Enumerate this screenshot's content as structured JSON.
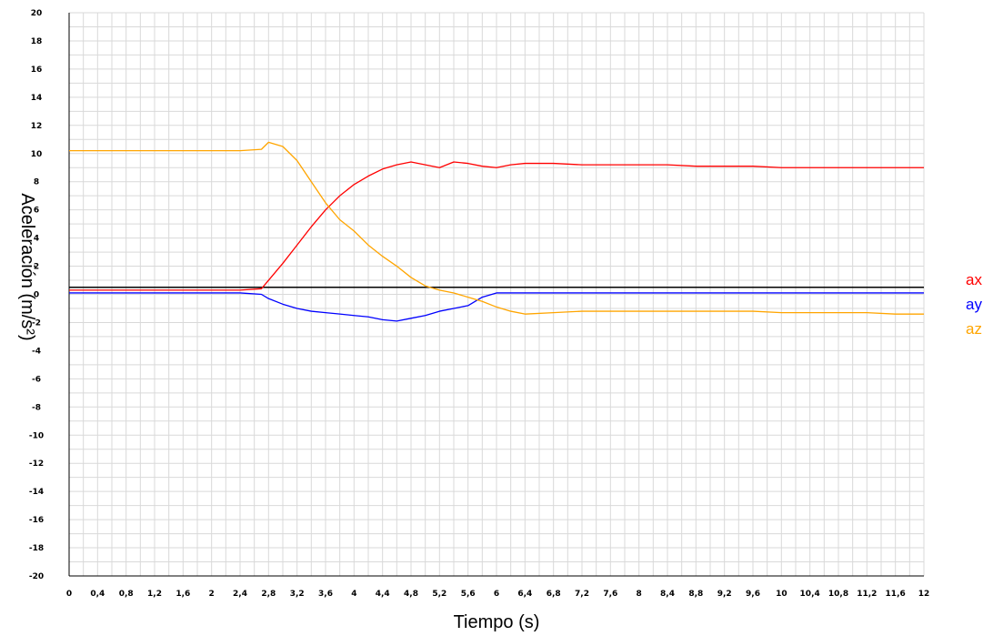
{
  "chart_data": {
    "type": "line",
    "xlabel": "Tiempo (s)",
    "ylabel": "Aceleración (m/s²)",
    "xlim": [
      0,
      12
    ],
    "ylim": [
      -20,
      20
    ],
    "grid": true,
    "legend_position": "right",
    "x_ticks": [
      "0",
      "0,4",
      "0,8",
      "1,2",
      "1,6",
      "2",
      "2,4",
      "2,8",
      "3,2",
      "3,6",
      "4",
      "4,4",
      "4,8",
      "5,2",
      "5,6",
      "6",
      "6,4",
      "6,8",
      "7,2",
      "7,6",
      "8",
      "8,4",
      "8,8",
      "9,2",
      "9,6",
      "10",
      "10,4",
      "10,8",
      "11,2",
      "11,6",
      "12"
    ],
    "y_ticks": [
      "20",
      "18",
      "16",
      "14",
      "12",
      "10",
      "8",
      "6",
      "4",
      "2",
      "0",
      "-2",
      "-4",
      "-6",
      "-8",
      "-10",
      "-12",
      "-14",
      "-16",
      "-18",
      "-20"
    ],
    "series": [
      {
        "name": "ax",
        "color": "#ff0000",
        "x": [
          0,
          0.4,
          0.8,
          1.2,
          1.6,
          2.0,
          2.4,
          2.7,
          2.8,
          3.0,
          3.2,
          3.4,
          3.6,
          3.8,
          4.0,
          4.2,
          4.4,
          4.6,
          4.8,
          5.0,
          5.2,
          5.4,
          5.6,
          5.8,
          6.0,
          6.2,
          6.4,
          6.8,
          7.2,
          7.6,
          8.0,
          8.4,
          8.8,
          9.2,
          9.6,
          10.0,
          10.4,
          10.8,
          11.2,
          11.6,
          12.0
        ],
        "y": [
          0.3,
          0.3,
          0.3,
          0.3,
          0.3,
          0.3,
          0.3,
          0.4,
          1.0,
          2.2,
          3.5,
          4.8,
          6.0,
          7.0,
          7.8,
          8.4,
          8.9,
          9.2,
          9.4,
          9.2,
          9.0,
          9.4,
          9.3,
          9.1,
          9.0,
          9.2,
          9.3,
          9.3,
          9.2,
          9.2,
          9.2,
          9.2,
          9.1,
          9.1,
          9.1,
          9.0,
          9.0,
          9.0,
          9.0,
          9.0,
          9.0
        ]
      },
      {
        "name": "ay",
        "color": "#0000ff",
        "x": [
          0,
          0.4,
          0.8,
          1.2,
          1.6,
          2.0,
          2.4,
          2.7,
          2.8,
          3.0,
          3.2,
          3.4,
          3.6,
          3.8,
          4.0,
          4.2,
          4.4,
          4.6,
          4.8,
          5.0,
          5.2,
          5.4,
          5.6,
          5.8,
          6.0,
          6.2,
          6.4,
          6.8,
          7.2,
          7.6,
          8.0,
          8.4,
          8.8,
          9.2,
          9.6,
          10.0,
          10.4,
          10.8,
          11.2,
          11.6,
          12.0
        ],
        "y": [
          0.1,
          0.1,
          0.1,
          0.1,
          0.1,
          0.1,
          0.1,
          0.0,
          -0.3,
          -0.7,
          -1.0,
          -1.2,
          -1.3,
          -1.4,
          -1.5,
          -1.6,
          -1.8,
          -1.9,
          -1.7,
          -1.5,
          -1.2,
          -1.0,
          -0.8,
          -0.2,
          0.1,
          0.1,
          0.1,
          0.1,
          0.1,
          0.1,
          0.1,
          0.1,
          0.1,
          0.1,
          0.1,
          0.1,
          0.1,
          0.1,
          0.1,
          0.1,
          0.1
        ]
      },
      {
        "name": "az",
        "color": "#ffa500",
        "x": [
          0,
          0.4,
          0.8,
          1.2,
          1.6,
          2.0,
          2.4,
          2.7,
          2.8,
          3.0,
          3.2,
          3.4,
          3.6,
          3.8,
          4.0,
          4.2,
          4.4,
          4.6,
          4.8,
          5.0,
          5.2,
          5.4,
          5.6,
          5.8,
          6.0,
          6.2,
          6.4,
          6.8,
          7.2,
          7.6,
          8.0,
          8.4,
          8.8,
          9.2,
          9.6,
          10.0,
          10.4,
          10.8,
          11.2,
          11.6,
          12.0
        ],
        "y": [
          10.2,
          10.2,
          10.2,
          10.2,
          10.2,
          10.2,
          10.2,
          10.3,
          10.8,
          10.5,
          9.5,
          8.0,
          6.5,
          5.3,
          4.5,
          3.5,
          2.7,
          2.0,
          1.2,
          0.6,
          0.3,
          0.1,
          -0.2,
          -0.5,
          -0.9,
          -1.2,
          -1.4,
          -1.3,
          -1.2,
          -1.2,
          -1.2,
          -1.2,
          -1.2,
          -1.2,
          -1.2,
          -1.3,
          -1.3,
          -1.3,
          -1.3,
          -1.4,
          -1.4
        ]
      }
    ]
  }
}
